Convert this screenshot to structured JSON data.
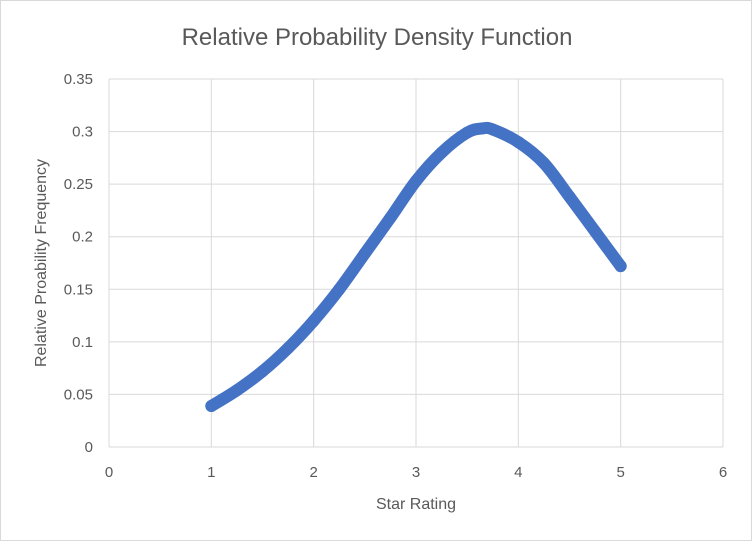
{
  "chart_data": {
    "type": "scatter",
    "title": "Relative Probability Density Function",
    "xlabel": "Star Rating",
    "ylabel": "Relative Proability Frequency",
    "xlim": [
      0,
      6
    ],
    "ylim": [
      0,
      0.35
    ],
    "x_ticks": [
      "0",
      "1",
      "2",
      "3",
      "4",
      "5",
      "6"
    ],
    "y_ticks": [
      "0",
      "0.05",
      "0.1",
      "0.15",
      "0.2",
      "0.25",
      "0.3",
      "0.35"
    ],
    "grid": true,
    "legend": "none",
    "series": [
      {
        "color": "#4472c4",
        "x": [
          1.0,
          1.25,
          1.5,
          1.75,
          2.0,
          2.25,
          2.5,
          2.75,
          3.0,
          3.25,
          3.5,
          3.65,
          3.75,
          4.0,
          4.25,
          4.5,
          4.75,
          5.0
        ],
        "y": [
          0.039,
          0.054,
          0.072,
          0.094,
          0.12,
          0.15,
          0.184,
          0.218,
          0.253,
          0.28,
          0.299,
          0.303,
          0.302,
          0.29,
          0.27,
          0.238,
          0.205,
          0.172
        ]
      }
    ]
  }
}
